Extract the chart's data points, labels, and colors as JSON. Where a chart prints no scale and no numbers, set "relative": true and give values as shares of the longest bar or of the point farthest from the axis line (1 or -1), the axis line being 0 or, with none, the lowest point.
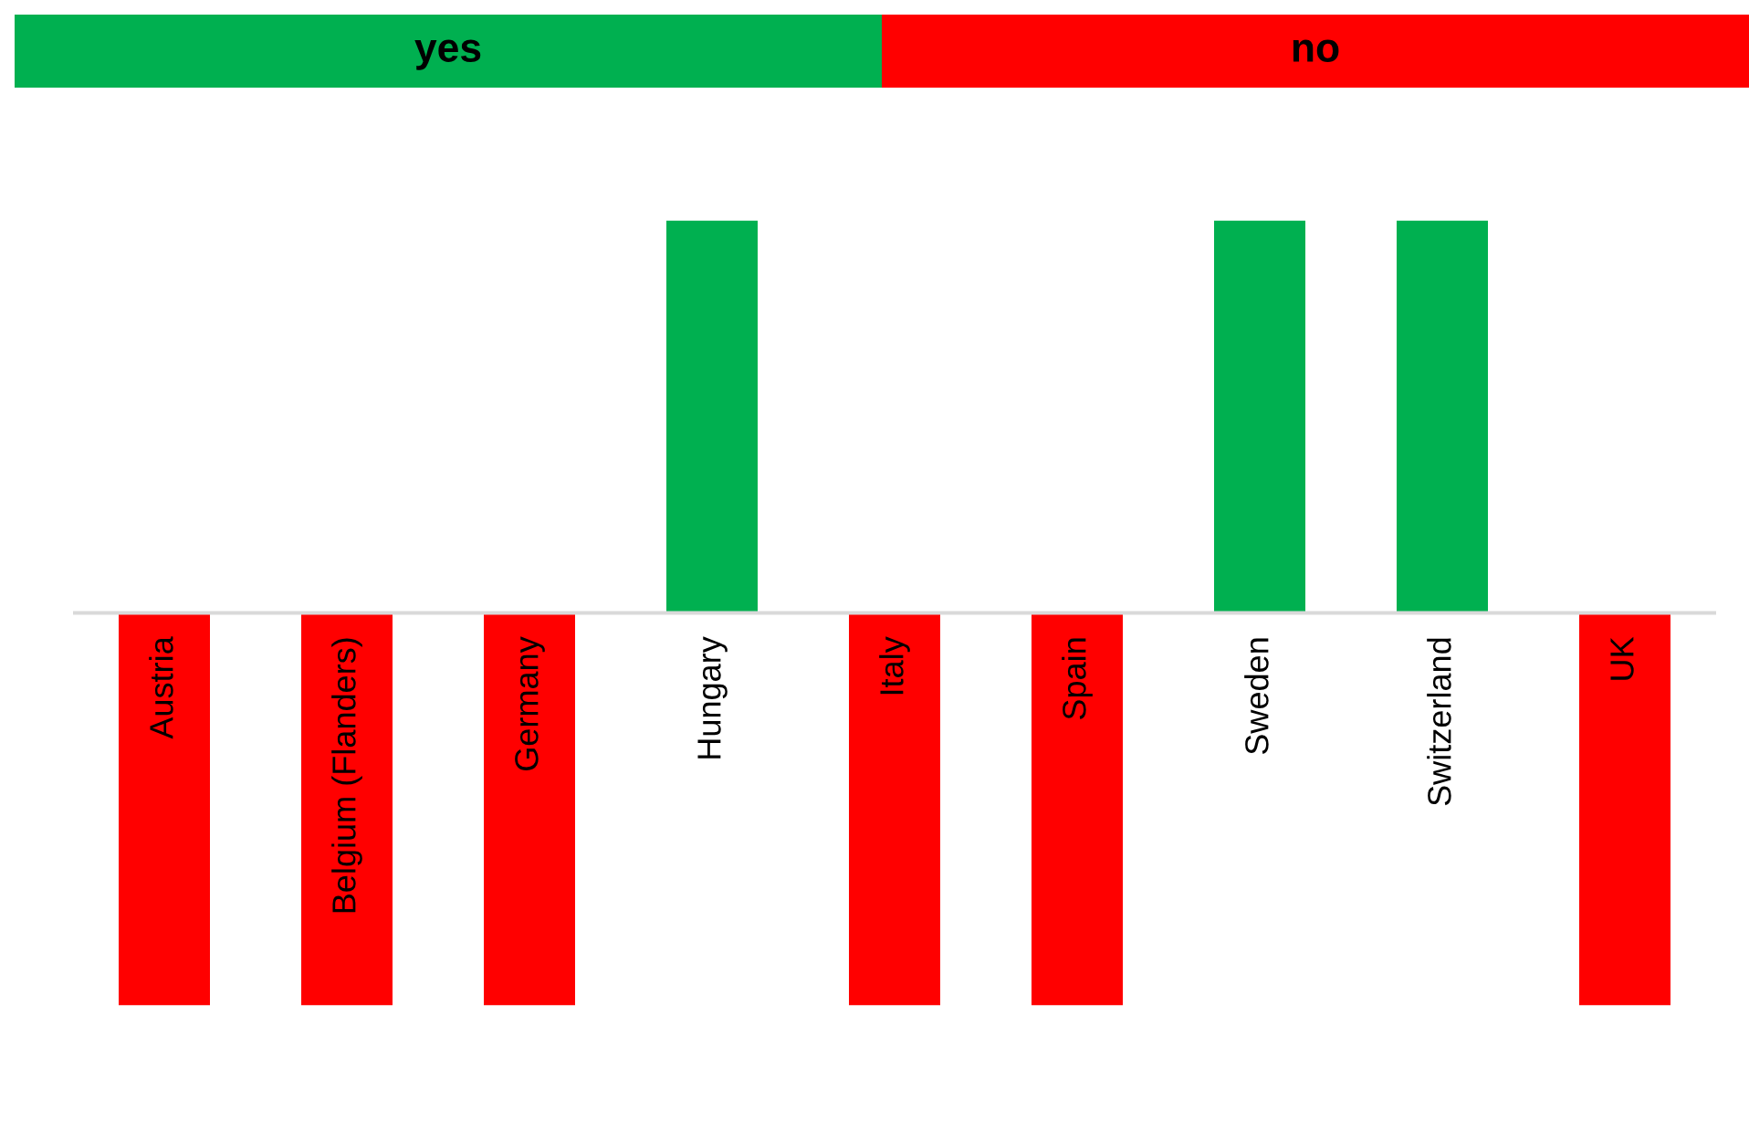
{
  "chart_data": {
    "type": "bar",
    "relative": true,
    "legend": "top",
    "categories": [
      "Austria",
      "Belgium (Flanders)",
      "Germany",
      "Hungary",
      "Italy",
      "Spain",
      "Sweden",
      "Switzerland",
      "UK"
    ],
    "series": [
      {
        "name": "yes",
        "color": "#00b050",
        "values": [
          null,
          null,
          null,
          1,
          null,
          null,
          1,
          1,
          null
        ]
      },
      {
        "name": "no",
        "color": "#ff0000",
        "values": [
          -1,
          -1,
          -1,
          null,
          -1,
          -1,
          null,
          null,
          -1
        ]
      }
    ]
  }
}
